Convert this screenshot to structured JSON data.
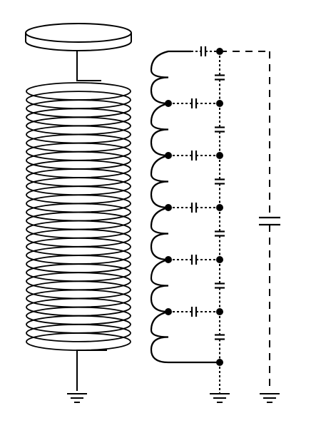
{
  "diagram": {
    "kind": "tesla-coil-equivalent-circuit",
    "colors": {
      "line": "#000000",
      "background": "#ffffff"
    },
    "components": {
      "top_load": {
        "shape": "disc",
        "icon": "toroid-disc-icon"
      },
      "secondary_coil": {
        "turns": 30,
        "icon": "solenoid-coil-icon"
      },
      "ground_symbols": 3,
      "equivalent_circuit": {
        "inductor_sections": 6,
        "turn_to_turn_capacitors": 6,
        "capacitors_to_ground_rail": 6,
        "nodes": 7,
        "top_load_capacitor": 1
      }
    }
  }
}
